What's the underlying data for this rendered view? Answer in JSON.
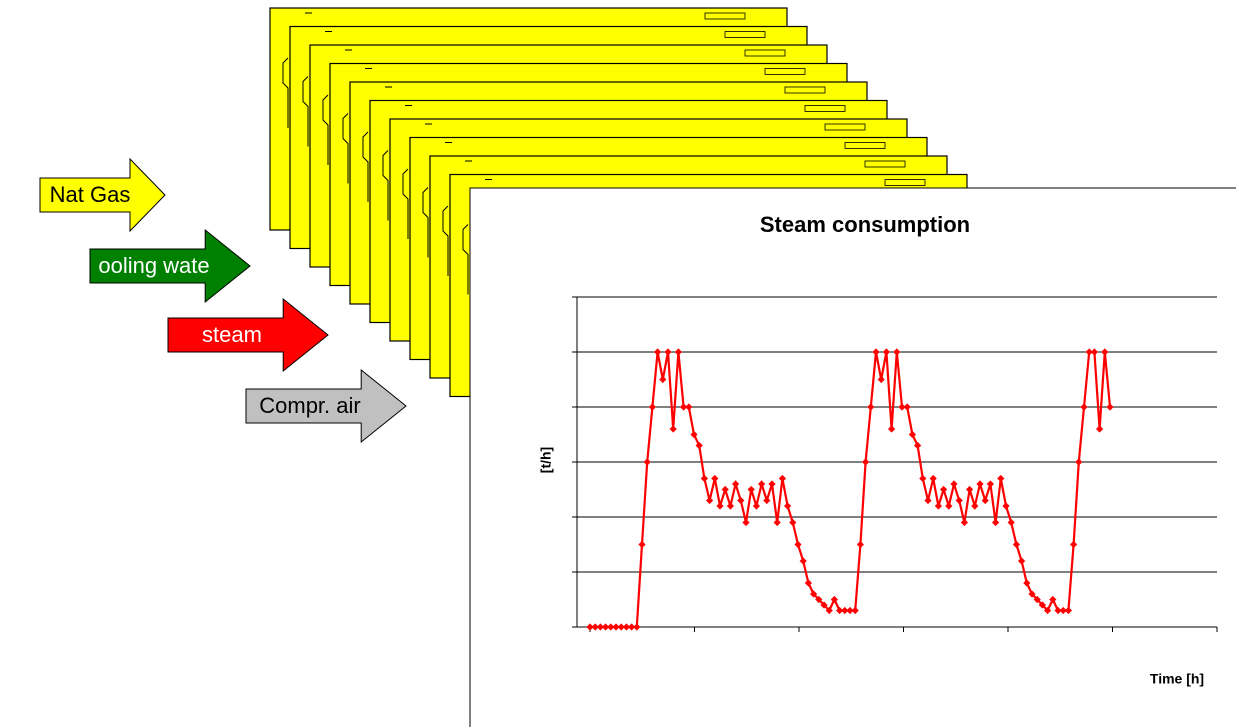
{
  "inputs": [
    {
      "label": "Nat Gas",
      "color": "#ffff00",
      "text_color": "#000000"
    },
    {
      "label": "ooling wate",
      "color": "#008000",
      "text_color": "#ffffff"
    },
    {
      "label": "steam",
      "color": "#ff0000",
      "text_color": "#ffffff"
    },
    {
      "label": "Compr. air",
      "color": "#c0c0c0",
      "text_color": "#000000"
    }
  ],
  "chart_data": {
    "type": "line",
    "title": "Steam consumption",
    "y_label": "[t/h]",
    "x_label": "Time [h]",
    "ylim": [
      0,
      6
    ],
    "yticks": [
      0,
      1,
      2,
      3,
      4,
      5,
      6
    ],
    "grid": true,
    "series": [
      {
        "color": "#ff0000",
        "values": [
          0,
          0,
          0,
          0,
          0,
          0,
          0,
          0,
          0,
          0,
          1.5,
          3,
          4,
          5,
          4.5,
          5,
          3.6,
          5,
          4,
          4,
          3.5,
          3.3,
          2.7,
          2.3,
          2.7,
          2.2,
          2.5,
          2.2,
          2.6,
          2.3,
          1.9,
          2.5,
          2.2,
          2.6,
          2.3,
          2.6,
          1.9,
          2.7,
          2.2,
          1.9,
          1.5,
          1.2,
          0.8,
          0.6,
          0.5,
          0.4,
          0.3,
          0.5,
          0.3,
          0.3,
          0.3,
          0.3,
          1.5,
          3,
          4,
          5,
          4.5,
          5,
          3.6,
          5,
          4,
          4,
          3.5,
          3.3,
          2.7,
          2.3,
          2.7,
          2.2,
          2.5,
          2.2,
          2.6,
          2.3,
          1.9,
          2.5,
          2.2,
          2.6,
          2.3,
          2.6,
          1.9,
          2.7,
          2.2,
          1.9,
          1.5,
          1.2,
          0.8,
          0.6,
          0.5,
          0.4,
          0.3,
          0.5,
          0.3,
          0.3,
          0.3,
          1.5,
          3,
          4,
          5,
          5,
          3.6,
          5,
          4
        ]
      }
    ]
  }
}
